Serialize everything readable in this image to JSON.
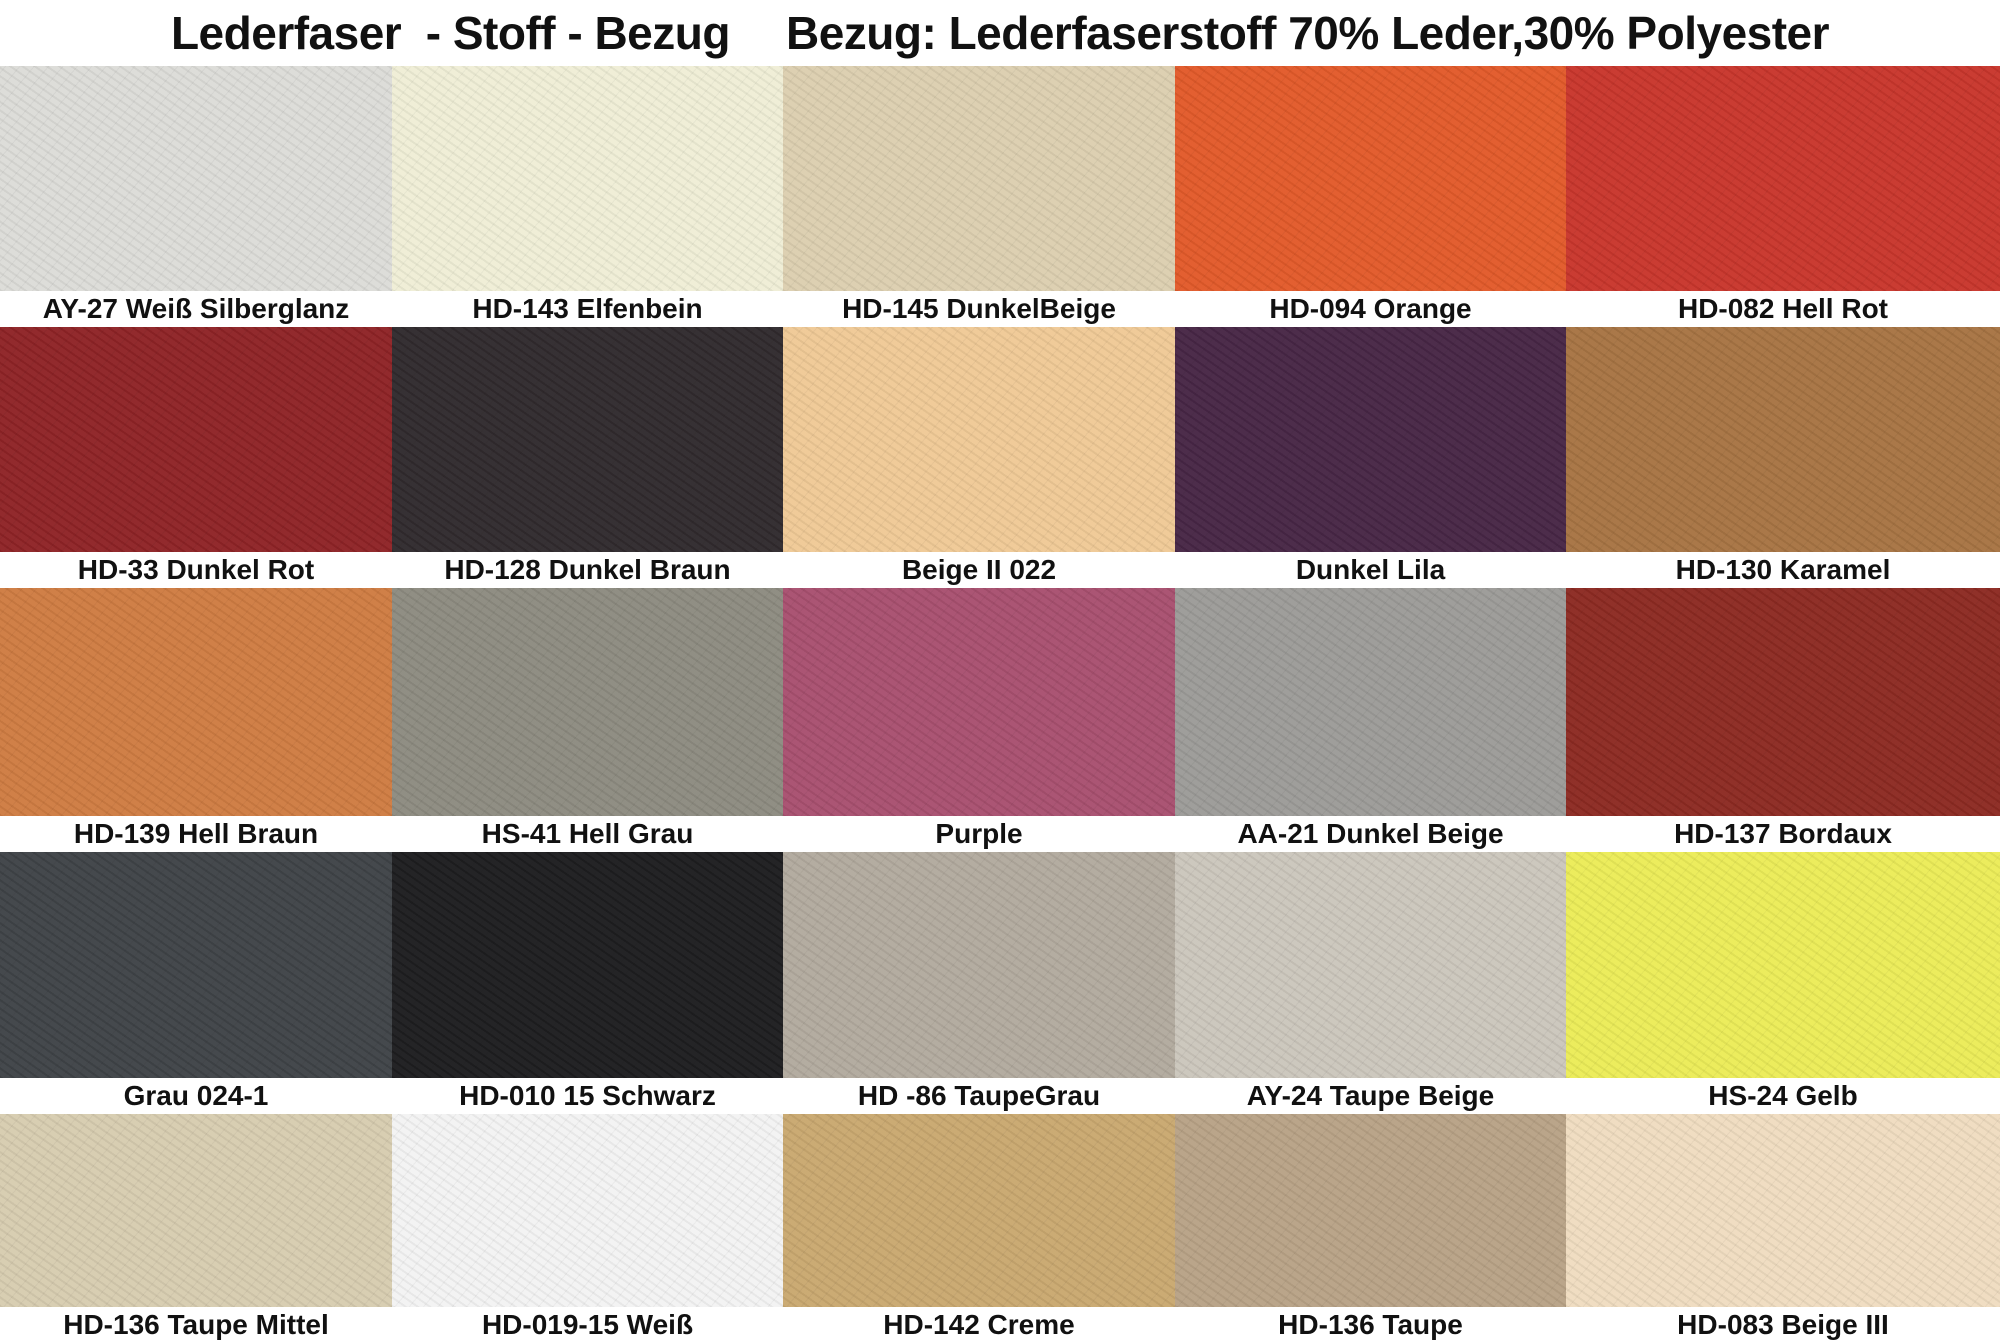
{
  "title": {
    "left": "Lederfaser  - Stoff - Bezug",
    "right": "Bezug: Lederfaserstoff 70% Leder,30% Polyester"
  },
  "rows": [
    [
      {
        "label": "AY-27 Weiß Silberglanz",
        "color": "#dcdcd8"
      },
      {
        "label": "HD-143 Elfenbein",
        "color": "#efeed6"
      },
      {
        "label": "HD-145 DunkelBeige",
        "color": "#dccfb0"
      },
      {
        "label": "HD-094 Orange",
        "color": "#e25a2a"
      },
      {
        "label": "HD-082 Hell Rot",
        "color": "#c8362c"
      }
    ],
    [
      {
        "label": "HD-33 Dunkel Rot",
        "color": "#8e2326"
      },
      {
        "label": "HD-128 Dunkel Braun",
        "color": "#302a2d"
      },
      {
        "label": "Beige II 022",
        "color": "#efc996"
      },
      {
        "label": "Dunkel Lila",
        "color": "#472645"
      },
      {
        "label": "HD-130 Karamel",
        "color": "#a77443"
      }
    ],
    [
      {
        "label": "HD-139 Hell Braun",
        "color": "#cf7c42"
      },
      {
        "label": "HS-41 Hell Grau",
        "color": "#8d8b80"
      },
      {
        "label": "Purple",
        "color": "#a8506f"
      },
      {
        "label": "AA-21 Dunkel Beige",
        "color": "#9c9b98"
      },
      {
        "label": "HD-137 Bordaux",
        "color": "#8c2a22"
      }
    ],
    [
      {
        "label": "Grau 024-1",
        "color": "#3f4347"
      },
      {
        "label": "HD-010 15 Schwarz",
        "color": "#1d1d1f"
      },
      {
        "label": "HD -86 TaupeGrau",
        "color": "#b2aa9e"
      },
      {
        "label": "AY-24 Taupe Beige",
        "color": "#cbc6bc"
      },
      {
        "label": "HS-24 Gelb",
        "color": "#ebec58"
      }
    ],
    [
      {
        "label": "HD-136 Taupe Mittel",
        "color": "#d7ccb0"
      },
      {
        "label": "HD-019-15 Weiß",
        "color": "#f3f3f3"
      },
      {
        "label": "HD-142 Creme",
        "color": "#c9a870"
      },
      {
        "label": "HD-136 Taupe",
        "color": "#b8a286"
      },
      {
        "label": "HD-083 Beige III",
        "color": "#efdcc0"
      }
    ]
  ]
}
